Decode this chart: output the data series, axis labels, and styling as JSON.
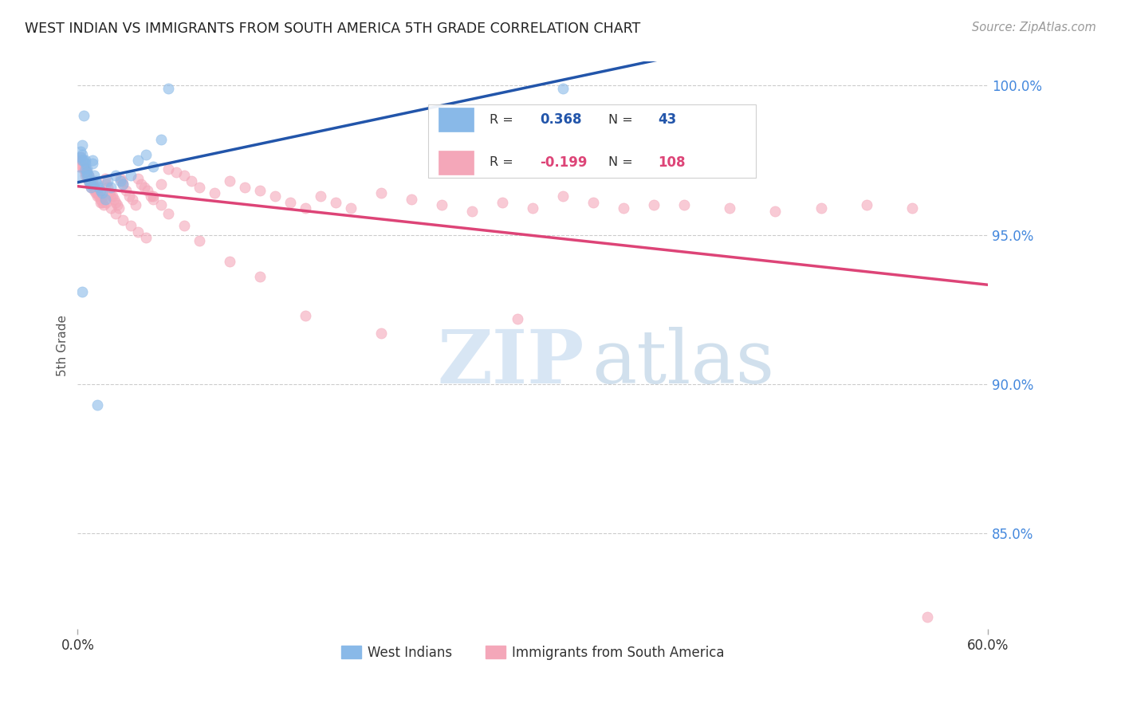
{
  "title": "WEST INDIAN VS IMMIGRANTS FROM SOUTH AMERICA 5TH GRADE CORRELATION CHART",
  "source": "Source: ZipAtlas.com",
  "ylabel": "5th Grade",
  "xmin": 0.0,
  "xmax": 0.6,
  "ymin": 0.818,
  "ymax": 1.008,
  "r_blue": 0.368,
  "n_blue": 43,
  "r_pink": -0.199,
  "n_pink": 108,
  "blue_color": "#89B9E8",
  "pink_color": "#F4A7B9",
  "blue_line_color": "#2255AA",
  "pink_line_color": "#DD4477",
  "legend_blue_label": "West Indians",
  "legend_pink_label": "Immigrants from South America",
  "blue_x": [
    0.001,
    0.002,
    0.002,
    0.003,
    0.003,
    0.003,
    0.004,
    0.004,
    0.005,
    0.005,
    0.005,
    0.006,
    0.006,
    0.006,
    0.007,
    0.007,
    0.008,
    0.008,
    0.009,
    0.009,
    0.01,
    0.01,
    0.011,
    0.012,
    0.013,
    0.014,
    0.015,
    0.016,
    0.018,
    0.02,
    0.022,
    0.025,
    0.028,
    0.03,
    0.035,
    0.04,
    0.045,
    0.05,
    0.055,
    0.06,
    0.013,
    0.32,
    0.003
  ],
  "blue_y": [
    0.97,
    0.978,
    0.976,
    0.98,
    0.977,
    0.975,
    0.99,
    0.975,
    0.975,
    0.974,
    0.972,
    0.972,
    0.971,
    0.97,
    0.97,
    0.968,
    0.968,
    0.967,
    0.967,
    0.966,
    0.975,
    0.974,
    0.97,
    0.968,
    0.967,
    0.966,
    0.965,
    0.964,
    0.962,
    0.968,
    0.966,
    0.97,
    0.968,
    0.967,
    0.97,
    0.975,
    0.977,
    0.973,
    0.982,
    0.999,
    0.893,
    0.999,
    0.931
  ],
  "pink_x": [
    0.001,
    0.002,
    0.002,
    0.003,
    0.003,
    0.004,
    0.004,
    0.005,
    0.005,
    0.006,
    0.006,
    0.007,
    0.007,
    0.008,
    0.008,
    0.009,
    0.009,
    0.01,
    0.01,
    0.011,
    0.011,
    0.012,
    0.012,
    0.013,
    0.014,
    0.015,
    0.015,
    0.016,
    0.017,
    0.018,
    0.019,
    0.02,
    0.021,
    0.022,
    0.023,
    0.024,
    0.025,
    0.026,
    0.027,
    0.028,
    0.029,
    0.03,
    0.032,
    0.034,
    0.036,
    0.038,
    0.04,
    0.042,
    0.044,
    0.046,
    0.048,
    0.05,
    0.055,
    0.06,
    0.065,
    0.07,
    0.075,
    0.08,
    0.09,
    0.1,
    0.11,
    0.12,
    0.13,
    0.14,
    0.15,
    0.16,
    0.17,
    0.18,
    0.2,
    0.22,
    0.24,
    0.26,
    0.28,
    0.3,
    0.32,
    0.34,
    0.36,
    0.38,
    0.4,
    0.43,
    0.46,
    0.49,
    0.52,
    0.55,
    0.005,
    0.007,
    0.009,
    0.011,
    0.013,
    0.016,
    0.019,
    0.022,
    0.025,
    0.03,
    0.035,
    0.04,
    0.045,
    0.05,
    0.055,
    0.06,
    0.07,
    0.08,
    0.1,
    0.12,
    0.15,
    0.2,
    0.29,
    0.56
  ],
  "pink_y": [
    0.973,
    0.976,
    0.975,
    0.975,
    0.973,
    0.973,
    0.972,
    0.972,
    0.97,
    0.971,
    0.97,
    0.97,
    0.968,
    0.968,
    0.967,
    0.967,
    0.966,
    0.968,
    0.967,
    0.966,
    0.965,
    0.965,
    0.964,
    0.963,
    0.963,
    0.962,
    0.961,
    0.961,
    0.96,
    0.969,
    0.967,
    0.966,
    0.964,
    0.963,
    0.963,
    0.962,
    0.961,
    0.96,
    0.959,
    0.969,
    0.968,
    0.967,
    0.965,
    0.963,
    0.962,
    0.96,
    0.969,
    0.967,
    0.966,
    0.965,
    0.963,
    0.962,
    0.967,
    0.972,
    0.971,
    0.97,
    0.968,
    0.966,
    0.964,
    0.968,
    0.966,
    0.965,
    0.963,
    0.961,
    0.959,
    0.963,
    0.961,
    0.959,
    0.964,
    0.962,
    0.96,
    0.958,
    0.961,
    0.959,
    0.963,
    0.961,
    0.959,
    0.96,
    0.96,
    0.959,
    0.958,
    0.959,
    0.96,
    0.959,
    0.971,
    0.969,
    0.967,
    0.966,
    0.964,
    0.963,
    0.961,
    0.959,
    0.957,
    0.955,
    0.953,
    0.951,
    0.949,
    0.963,
    0.96,
    0.957,
    0.953,
    0.948,
    0.941,
    0.936,
    0.923,
    0.917,
    0.922,
    0.822
  ]
}
